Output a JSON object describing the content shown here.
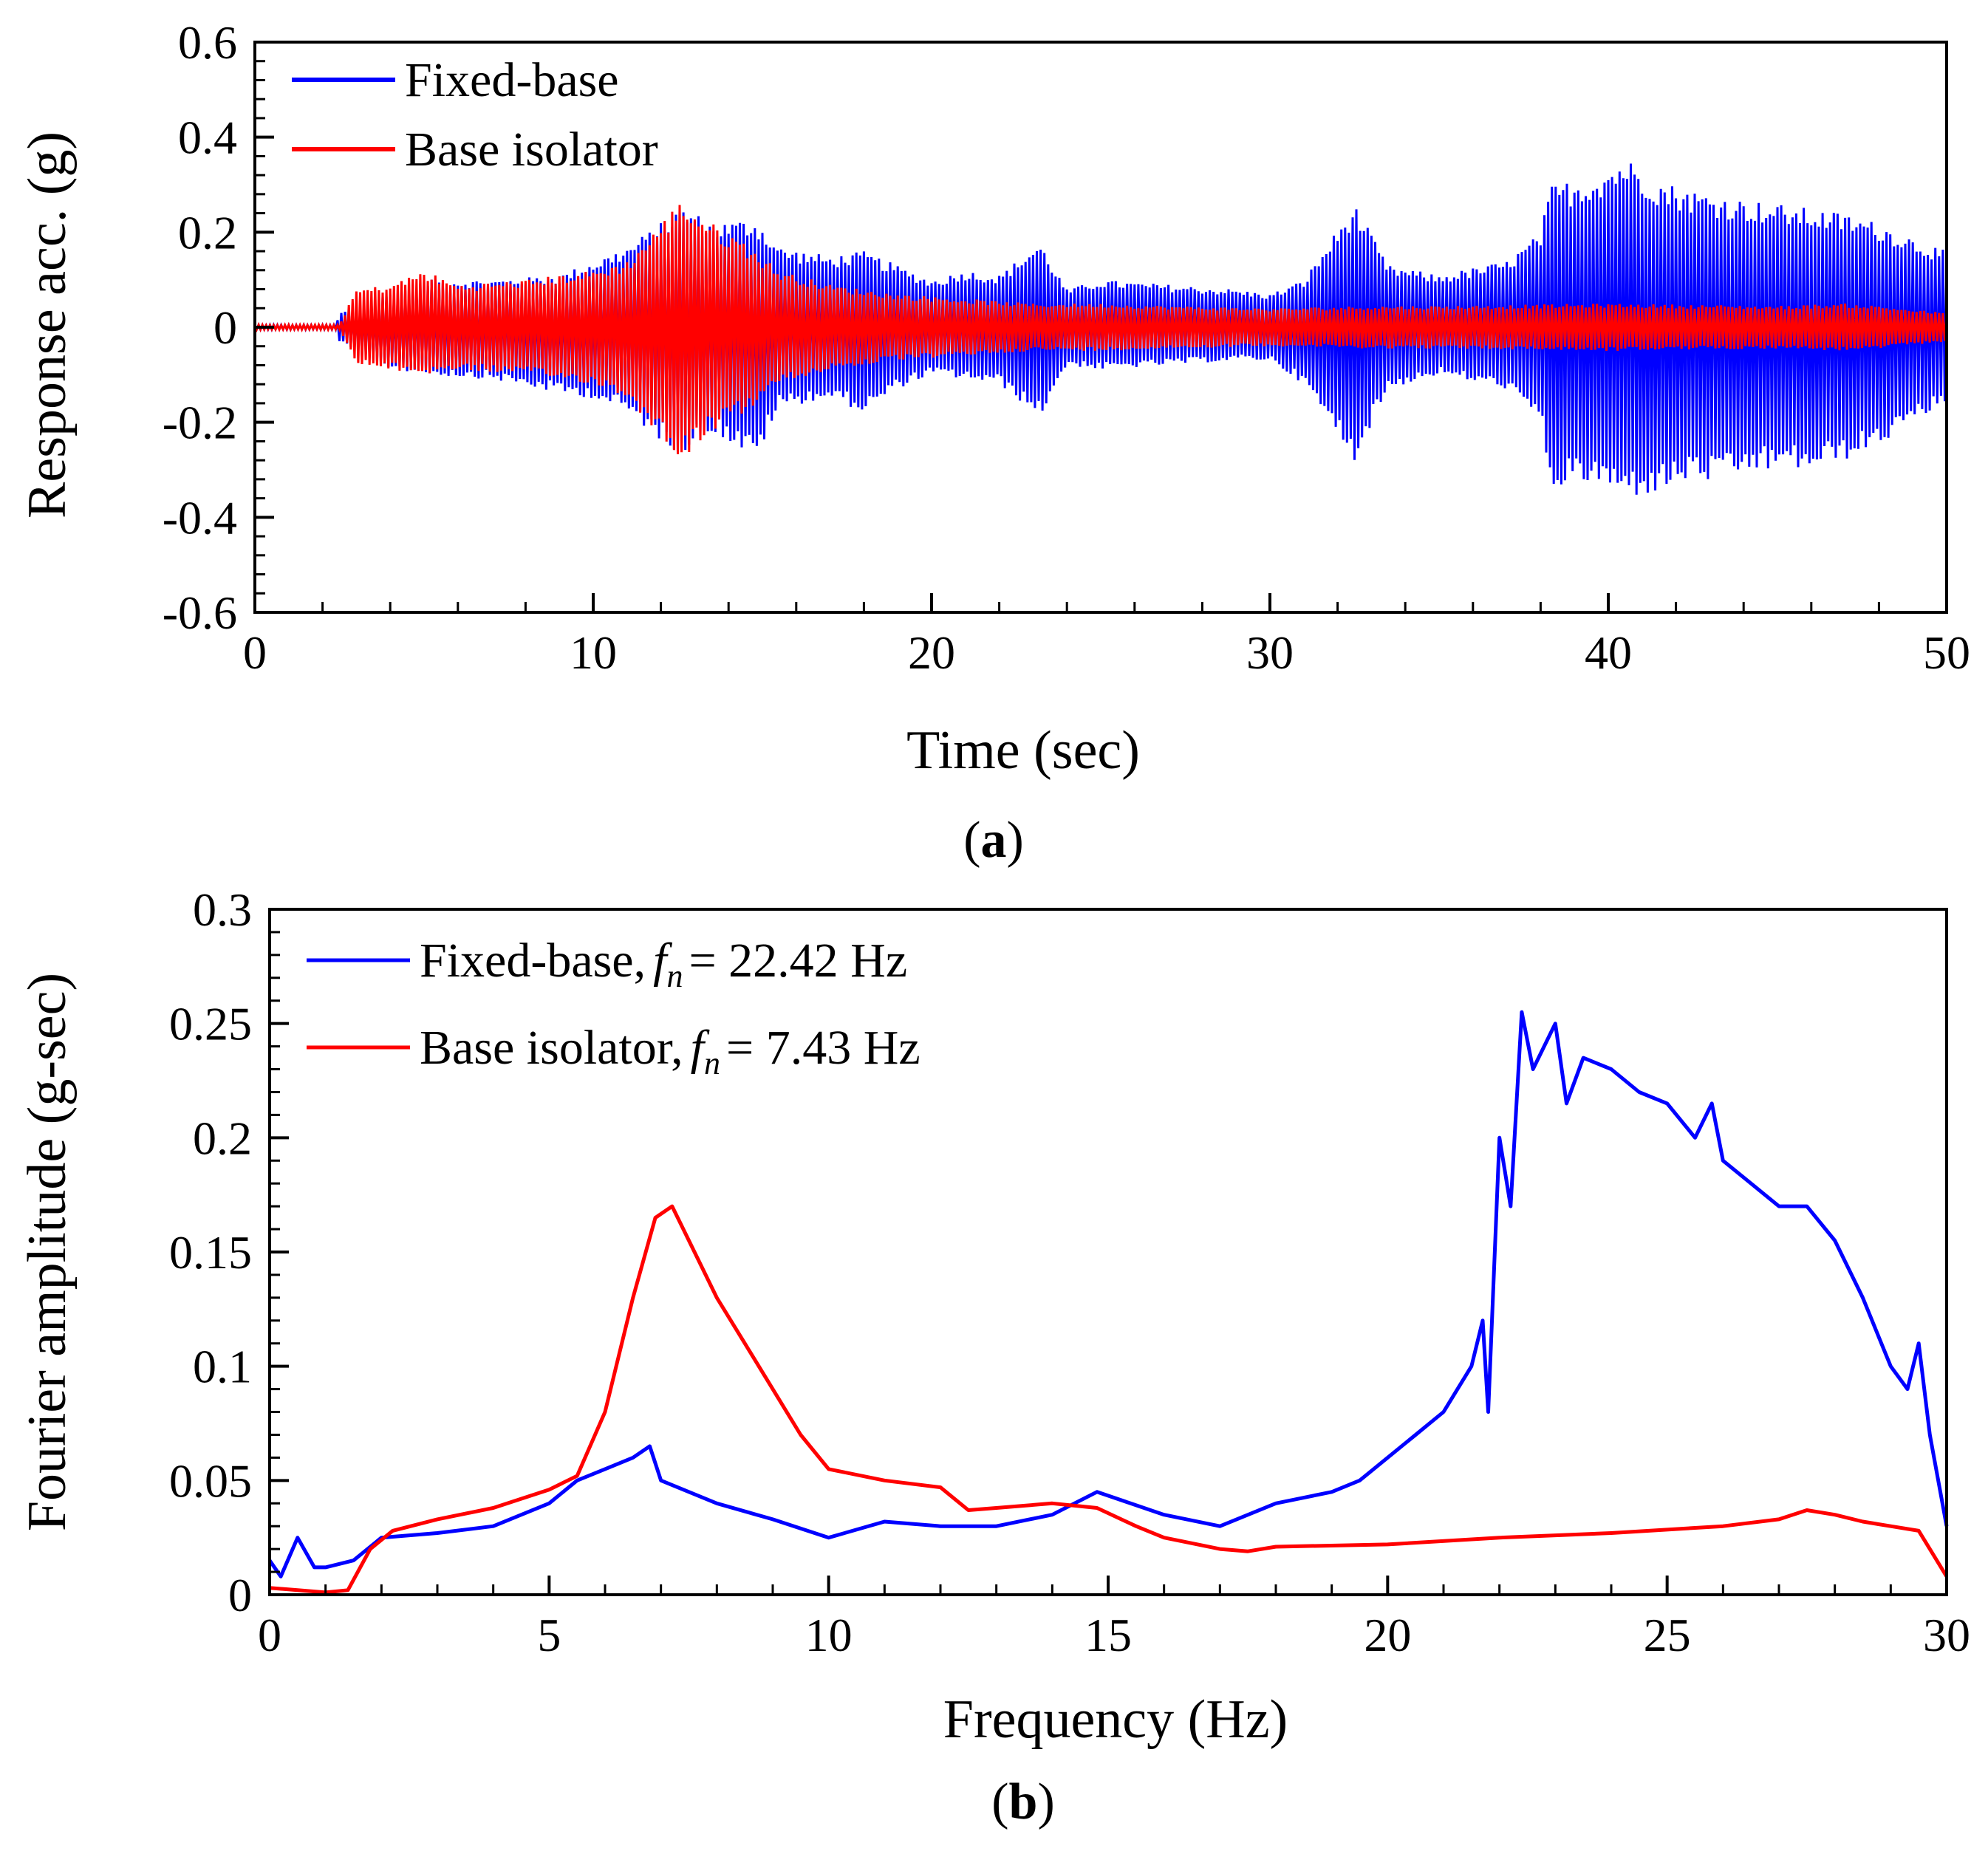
{
  "chart_data": [
    {
      "panel_label": "a",
      "type": "line",
      "xlabel": "Time (sec)",
      "ylabel": "Response acc. (g)",
      "xlim": [
        0,
        50
      ],
      "ylim": [
        -0.6,
        0.6
      ],
      "x_ticks": [
        0,
        10,
        20,
        30,
        40,
        50
      ],
      "x_tick_labels": [
        "0",
        "10",
        "20",
        "30",
        "40",
        "50"
      ],
      "y_ticks": [
        0.6,
        0.4,
        0.2,
        0,
        -0.2,
        -0.4,
        -0.6
      ],
      "y_tick_labels": [
        "0.6",
        "0.4",
        "0.2",
        "0",
        "-0.2",
        "-0.4",
        "-0.6"
      ],
      "legend_position": "top-left",
      "series": [
        {
          "name": "Fixed-base",
          "color": "#0000ff",
          "envelope": {
            "t": [
              0,
              2.4,
              2.5,
              3.5,
              5,
              7,
              9,
              10,
              11,
              12,
              12.6,
              13.5,
              14.8,
              15.5,
              17,
              18,
              19,
              20,
              21,
              22,
              23.2,
              24,
              25,
              27,
              29,
              30,
              31,
              32.5,
              33.5,
              35,
              37,
              38,
              38.3,
              39.5,
              40.5,
              41.5,
              42.5,
              43.2,
              44,
              45,
              46,
              47,
              48,
              49,
              50
            ],
            "max": [
              0.005,
              0.005,
              0.03,
              0.06,
              0.1,
              0.1,
              0.11,
              0.14,
              0.17,
              0.22,
              0.26,
              0.22,
              0.23,
              0.17,
              0.15,
              0.16,
              0.13,
              0.1,
              0.12,
              0.11,
              0.18,
              0.08,
              0.1,
              0.09,
              0.08,
              0.07,
              0.1,
              0.26,
              0.13,
              0.11,
              0.14,
              0.2,
              0.3,
              0.32,
              0.36,
              0.31,
              0.29,
              0.28,
              0.27,
              0.26,
              0.25,
              0.24,
              0.22,
              0.19,
              0.16
            ],
            "min": [
              -0.005,
              -0.005,
              -0.03,
              -0.08,
              -0.1,
              -0.11,
              -0.14,
              -0.15,
              -0.18,
              -0.24,
              -0.27,
              -0.22,
              -0.28,
              -0.17,
              -0.15,
              -0.18,
              -0.13,
              -0.1,
              -0.11,
              -0.12,
              -0.19,
              -0.08,
              -0.09,
              -0.08,
              -0.07,
              -0.07,
              -0.12,
              -0.28,
              -0.13,
              -0.1,
              -0.13,
              -0.2,
              -0.34,
              -0.33,
              -0.36,
              -0.35,
              -0.32,
              -0.33,
              -0.31,
              -0.3,
              -0.3,
              -0.28,
              -0.25,
              -0.2,
              -0.16
            ]
          }
        },
        {
          "name": "Base isolator",
          "color": "#ff0000",
          "envelope": {
            "t": [
              0,
              2.5,
              3,
              4,
              5,
              6,
              8,
              10,
              11,
              12,
              12.6,
              13.5,
              14.5,
              15.5,
              17,
              19,
              21,
              23,
              25,
              27,
              30,
              33,
              35,
              40,
              45,
              47,
              48,
              50
            ],
            "max": [
              0.005,
              0.005,
              0.08,
              0.09,
              0.12,
              0.09,
              0.1,
              0.12,
              0.14,
              0.22,
              0.27,
              0.22,
              0.18,
              0.12,
              0.09,
              0.07,
              0.06,
              0.05,
              0.05,
              0.045,
              0.04,
              0.045,
              0.045,
              0.05,
              0.045,
              0.05,
              0.045,
              0.03
            ],
            "min": [
              -0.005,
              -0.005,
              -0.08,
              -0.09,
              -0.1,
              -0.09,
              -0.1,
              -0.12,
              -0.15,
              -0.23,
              -0.28,
              -0.22,
              -0.18,
              -0.12,
              -0.09,
              -0.07,
              -0.06,
              -0.05,
              -0.05,
              -0.045,
              -0.04,
              -0.045,
              -0.045,
              -0.05,
              -0.045,
              -0.05,
              -0.045,
              -0.03
            ]
          }
        }
      ]
    },
    {
      "panel_label": "b",
      "type": "line",
      "xlabel": "Frequency (Hz)",
      "ylabel": "Fourier amplitude (g-sec)",
      "xlim": [
        0,
        30
      ],
      "ylim": [
        0,
        0.3
      ],
      "x_ticks": [
        0,
        5,
        10,
        15,
        20,
        25,
        30
      ],
      "x_tick_labels": [
        "0",
        "5",
        "10",
        "15",
        "20",
        "25",
        "30"
      ],
      "y_ticks": [
        0.3,
        0.25,
        0.2,
        0.15,
        0.1,
        0.05,
        0
      ],
      "y_tick_labels": [
        "0.3",
        "0.25",
        "0.2",
        "0.15",
        "0.1",
        "0.05",
        "0"
      ],
      "legend_position": "top-left",
      "series": [
        {
          "name": "Fixed-base,",
          "fn_label": "= 22.42 Hz",
          "color": "#0000ff",
          "x": [
            0,
            0.2,
            0.5,
            0.8,
            1,
            1.5,
            2,
            3,
            4,
            5,
            5.5,
            6,
            6.5,
            6.8,
            7,
            8,
            9,
            10,
            11,
            12,
            13,
            14,
            14.8,
            16,
            17,
            18,
            19,
            19.5,
            20,
            20.5,
            21,
            21.5,
            21.7,
            21.8,
            22,
            22.2,
            22.4,
            22.6,
            23,
            23.2,
            23.5,
            24,
            24.5,
            25,
            25.5,
            25.8,
            26,
            26.5,
            27,
            27.5,
            28,
            28.5,
            29,
            29.3,
            29.5,
            29.7,
            30
          ],
          "y": [
            0.015,
            0.008,
            0.025,
            0.012,
            0.012,
            0.015,
            0.025,
            0.027,
            0.03,
            0.04,
            0.05,
            0.055,
            0.06,
            0.065,
            0.05,
            0.04,
            0.033,
            0.025,
            0.032,
            0.03,
            0.03,
            0.035,
            0.045,
            0.035,
            0.03,
            0.04,
            0.045,
            0.05,
            0.06,
            0.07,
            0.08,
            0.1,
            0.12,
            0.08,
            0.2,
            0.17,
            0.255,
            0.23,
            0.25,
            0.215,
            0.235,
            0.23,
            0.22,
            0.215,
            0.2,
            0.215,
            0.19,
            0.18,
            0.17,
            0.17,
            0.155,
            0.13,
            0.1,
            0.09,
            0.11,
            0.07,
            0.03
          ]
        },
        {
          "name": "Base isolator,",
          "fn_label": "= 7.43 Hz",
          "color": "#ff0000",
          "x": [
            0,
            0.5,
            1,
            1.4,
            1.8,
            2.2,
            3,
            4,
            5,
            5.5,
            6,
            6.5,
            6.9,
            7.2,
            7.5,
            8,
            8.5,
            9,
            9.5,
            10,
            11,
            12,
            12.5,
            13,
            14,
            14.8,
            15.5,
            16,
            17,
            17.5,
            18,
            20,
            22,
            24,
            26,
            27,
            27.5,
            28,
            28.5,
            29,
            29.5,
            30
          ],
          "y": [
            0.003,
            0.002,
            0.001,
            0.002,
            0.02,
            0.028,
            0.033,
            0.038,
            0.046,
            0.052,
            0.08,
            0.13,
            0.165,
            0.17,
            0.155,
            0.13,
            0.11,
            0.09,
            0.07,
            0.055,
            0.05,
            0.047,
            0.037,
            0.038,
            0.04,
            0.038,
            0.03,
            0.025,
            0.02,
            0.019,
            0.021,
            0.022,
            0.025,
            0.027,
            0.03,
            0.033,
            0.037,
            0.035,
            0.032,
            0.03,
            0.028,
            0.008
          ]
        }
      ]
    }
  ]
}
